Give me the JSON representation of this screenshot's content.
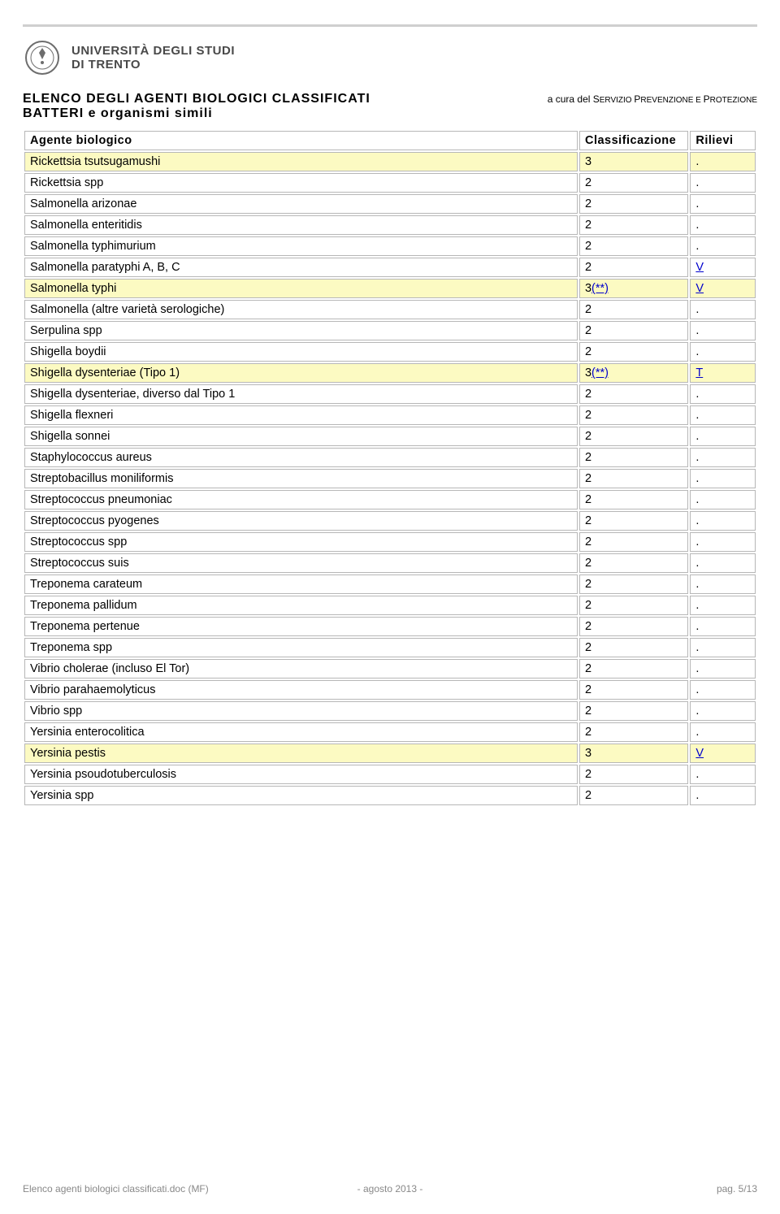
{
  "logo": {
    "line1": "UNIVERSITÀ DEGLI STUDI",
    "line2": "DI TRENTO"
  },
  "headingLeft": {
    "line1": "ELENCO DEGLI AGENTI BIOLOGICI CLASSIFICATI",
    "line2": "BATTERI e organismi simili"
  },
  "headingRight": {
    "pre": "a cura del S",
    "small1": "ERVIZIO ",
    "mid": "P",
    "small2": "REVENZIONE E ",
    "mid2": "P",
    "small3": "ROTEZIONE"
  },
  "headers": {
    "agent": "Agente biologico",
    "class": "Classificazione",
    "ril": "Rilievi"
  },
  "rows": [
    {
      "agent": "Rickettsia tsutsugamushi",
      "class": "3",
      "ril": ".",
      "hl": true,
      "link": false
    },
    {
      "agent": "Rickettsia spp",
      "class": "2",
      "ril": ".",
      "hl": false,
      "link": false
    },
    {
      "agent": "Salmonella arizonae",
      "class": "2",
      "ril": ".",
      "hl": false,
      "link": false
    },
    {
      "agent": "Salmonella enteritidis",
      "class": "2",
      "ril": ".",
      "hl": false,
      "link": false
    },
    {
      "agent": "Salmonella typhimurium",
      "class": "2",
      "ril": ".",
      "hl": false,
      "link": false
    },
    {
      "agent": "Salmonella paratyphi A, B, C",
      "class": "2",
      "ril": "V",
      "hl": false,
      "link": true
    },
    {
      "agent": "Salmonella typhi",
      "class": "3(**)",
      "ril": "V",
      "hl": true,
      "link": true,
      "classlink": true
    },
    {
      "agent": "Salmonella (altre varietà serologiche)",
      "class": "2",
      "ril": ".",
      "hl": false,
      "link": false
    },
    {
      "agent": "Serpulina spp",
      "class": "2",
      "ril": ".",
      "hl": false,
      "link": false
    },
    {
      "agent": "Shigella boydii",
      "class": "2",
      "ril": ".",
      "hl": false,
      "link": false
    },
    {
      "agent": "Shigella dysenteriae (Tipo 1)",
      "class": "3(**)",
      "ril": "T",
      "hl": true,
      "link": true,
      "classlink": true
    },
    {
      "agent": "Shigella dysenteriae, diverso dal Tipo 1",
      "class": "2",
      "ril": ".",
      "hl": false,
      "link": false
    },
    {
      "agent": "Shigella flexneri",
      "class": "2",
      "ril": ".",
      "hl": false,
      "link": false
    },
    {
      "agent": "Shigella sonnei",
      "class": "2",
      "ril": ".",
      "hl": false,
      "link": false
    },
    {
      "agent": "Staphylococcus aureus",
      "class": "2",
      "ril": ".",
      "hl": false,
      "link": false
    },
    {
      "agent": "Streptobacillus moniliformis",
      "class": "2",
      "ril": ".",
      "hl": false,
      "link": false
    },
    {
      "agent": "Streptococcus pneumoniac",
      "class": "2",
      "ril": ".",
      "hl": false,
      "link": false
    },
    {
      "agent": "Streptococcus pyogenes",
      "class": "2",
      "ril": ".",
      "hl": false,
      "link": false
    },
    {
      "agent": "Streptococcus spp",
      "class": "2",
      "ril": ".",
      "hl": false,
      "link": false
    },
    {
      "agent": "Streptococcus suis",
      "class": "2",
      "ril": ".",
      "hl": false,
      "link": false
    },
    {
      "agent": "Treponema carateum",
      "class": "2",
      "ril": ".",
      "hl": false,
      "link": false
    },
    {
      "agent": "Treponema pallidum",
      "class": "2",
      "ril": ".",
      "hl": false,
      "link": false
    },
    {
      "agent": "Treponema pertenue",
      "class": "2",
      "ril": ".",
      "hl": false,
      "link": false
    },
    {
      "agent": "Treponema spp",
      "class": "2",
      "ril": ".",
      "hl": false,
      "link": false
    },
    {
      "agent": "Vibrio cholerae (incluso El Tor)",
      "class": "2",
      "ril": ".",
      "hl": false,
      "link": false
    },
    {
      "agent": "Vibrio parahaemolyticus",
      "class": "2",
      "ril": ".",
      "hl": false,
      "link": false
    },
    {
      "agent": "Vibrio spp",
      "class": "2",
      "ril": ".",
      "hl": false,
      "link": false
    },
    {
      "agent": "Yersinia enterocolitica",
      "class": "2",
      "ril": ".",
      "hl": false,
      "link": false
    },
    {
      "agent": "Yersinia pestis",
      "class": "3",
      "ril": "V",
      "hl": true,
      "link": true
    },
    {
      "agent": "Yersinia psoudotuberculosis",
      "class": "2",
      "ril": ".",
      "hl": false,
      "link": false
    },
    {
      "agent": "Yersinia spp",
      "class": "2",
      "ril": ".",
      "hl": false,
      "link": false
    }
  ],
  "footer": {
    "left": "Elenco agenti biologici classificati.doc (MF)",
    "center": "- agosto 2013 -",
    "right": "pag. 5/13"
  }
}
